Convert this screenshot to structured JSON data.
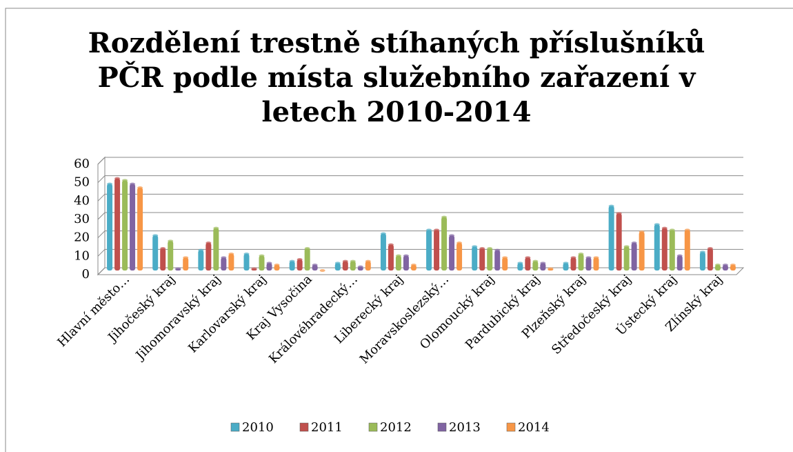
{
  "chart_data": {
    "type": "bar",
    "title": "Rozdělení trestně stíhaných příslušníků PČR podle místa služebního zařazení v letech 2010-2014",
    "categories": [
      "Hlavní město…",
      "Jihočeský kraj",
      "Jihomoravský kraj",
      "Karlovarský kraj",
      "Kraj Vysočina",
      "Královéhradecký…",
      "Liberecký kraj",
      "Moravskoslezský…",
      "Olomoucký kraj",
      "Pardubický kraj",
      "Plzeňský kraj",
      "Středočeský kraj",
      "Ústecký kraj",
      "Zlínský kraj"
    ],
    "series": [
      {
        "name": "2010",
        "color": "#4bacc6",
        "values": [
          47,
          19,
          11,
          9,
          5,
          4,
          20,
          22,
          13,
          4,
          4,
          35,
          25,
          10
        ]
      },
      {
        "name": "2011",
        "color": "#c0504d",
        "values": [
          50,
          12,
          15,
          1,
          6,
          5,
          14,
          22,
          12,
          7,
          7,
          31,
          23,
          12
        ]
      },
      {
        "name": "2012",
        "color": "#9bbb59",
        "values": [
          49,
          16,
          23,
          8,
          12,
          5,
          8,
          29,
          12,
          5,
          9,
          13,
          22,
          3
        ]
      },
      {
        "name": "2013",
        "color": "#8064a2",
        "values": [
          47,
          1,
          7,
          4,
          3,
          2,
          8,
          19,
          11,
          4,
          7,
          15,
          8,
          3
        ]
      },
      {
        "name": "2014",
        "color": "#f79646",
        "values": [
          45,
          7,
          9,
          3,
          0,
          5,
          3,
          15,
          7,
          1,
          7,
          21,
          22,
          3
        ]
      }
    ],
    "ylim": [
      0,
      60
    ],
    "yticks": [
      0,
      10,
      20,
      30,
      40,
      50,
      60
    ],
    "grid": true,
    "legend": "bottom"
  }
}
